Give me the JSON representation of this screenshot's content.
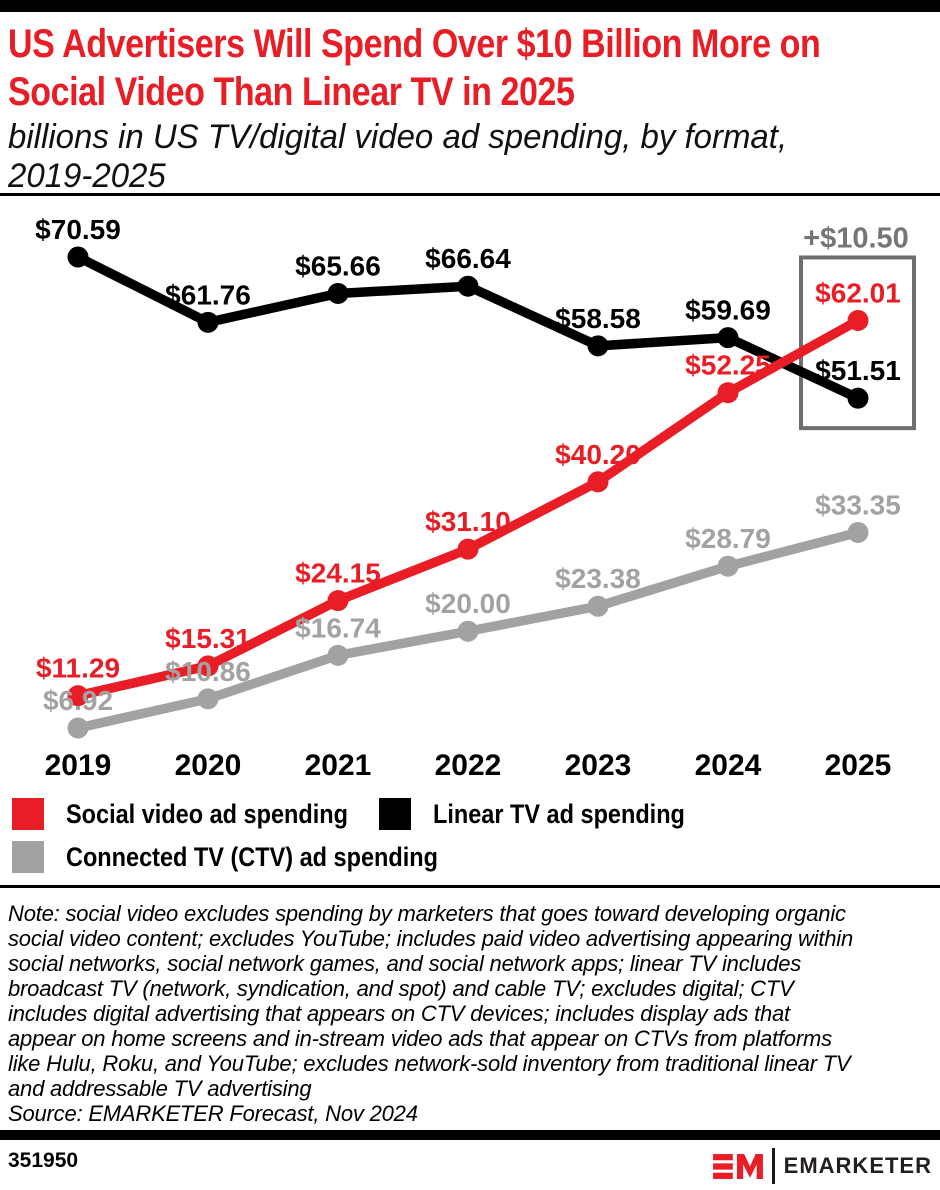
{
  "header": {
    "title_lines": [
      "US Advertisers Will Spend Over $10 Billion More on",
      "Social Video Than Linear TV in 2025"
    ],
    "title_color": "#E91D25",
    "subtitle_lines": [
      "billions in US TV/digital video ad spending, by format,",
      "2019-2025"
    ]
  },
  "chart_data": {
    "type": "line",
    "categories": [
      "2019",
      "2020",
      "2021",
      "2022",
      "2023",
      "2024",
      "2025"
    ],
    "series": [
      {
        "name": "Social video ad spending",
        "color": "#E91D25",
        "values": [
          11.29,
          15.31,
          24.15,
          31.1,
          40.2,
          52.25,
          62.01
        ],
        "labels": [
          "$11.29",
          "$15.31",
          "$24.15",
          "$31.10",
          "$40.20",
          "$52.25",
          "$62.01"
        ]
      },
      {
        "name": "Linear TV ad spending",
        "color": "#000000",
        "values": [
          70.59,
          61.76,
          65.66,
          66.64,
          58.58,
          59.69,
          51.51
        ],
        "labels": [
          "$70.59",
          "$61.76",
          "$65.66",
          "$66.64",
          "$58.58",
          "$59.69",
          "$51.51"
        ]
      },
      {
        "name": "Connected TV (CTV) ad spending",
        "color": "#A2A2A2",
        "values": [
          6.92,
          10.86,
          16.74,
          20.0,
          23.38,
          28.79,
          33.35
        ],
        "labels": [
          "$6.92",
          "$10.86",
          "$16.74",
          "$20.00",
          "$23.38",
          "$28.79",
          "$33.35"
        ]
      }
    ],
    "annotation": {
      "text": "+$10.50",
      "color": "#747579",
      "box_color": "#6D6E71",
      "highlights_year": "2025",
      "meaning": "gap between social video and linear TV in 2025"
    },
    "title": "US Advertisers Will Spend Over $10 Billion More on Social Video Than Linear TV in 2025",
    "xlabel": "",
    "ylabel": "billions in US TV/digital video ad spending",
    "ylim": [
      0,
      75
    ],
    "grid": false,
    "legend_position": "bottom"
  },
  "legend": {
    "items": [
      {
        "label": "Social video ad spending",
        "color": "#E91D25"
      },
      {
        "label": "Linear TV ad spending",
        "color": "#000000"
      },
      {
        "label": "Connected TV (CTV) ad spending",
        "color": "#A2A2A2"
      }
    ]
  },
  "note": {
    "lines": [
      "Note: social video excludes spending by marketers that goes toward developing organic",
      "social video content; excludes YouTube; includes paid video advertising appearing within",
      "social networks, social network games, and social network apps; linear TV includes",
      "broadcast TV (network, syndication, and spot) and cable TV; excludes digital; CTV",
      "includes digital advertising that appears on CTV devices; includes display ads that",
      "appear on home screens and in-stream video ads that appear on CTVs from platforms",
      "like Hulu, Roku, and YouTube; excludes network-sold inventory from traditional linear TV",
      "and addressable TV advertising"
    ]
  },
  "source": "Source: EMARKETER Forecast, Nov 2024",
  "footer": {
    "chart_id": "351950",
    "brand": "EMARKETER",
    "brand_color": "#E91D25"
  }
}
